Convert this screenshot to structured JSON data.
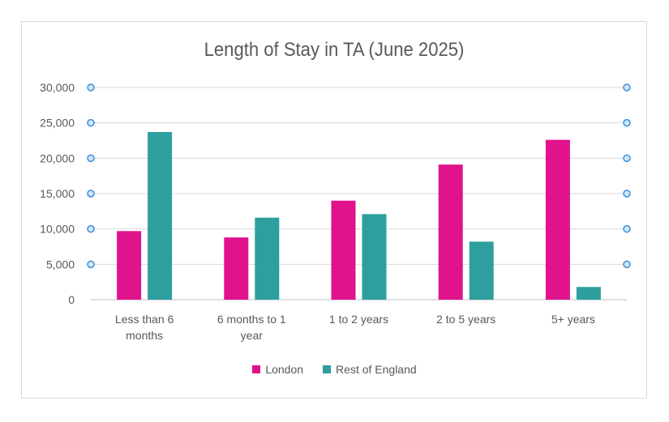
{
  "chart_data": {
    "type": "bar",
    "title": "Length of Stay in TA (June 2025)",
    "categories": [
      [
        "Less than 6",
        "months"
      ],
      [
        "6 months to 1",
        "year"
      ],
      [
        "1 to 2 years"
      ],
      [
        "2 to 5 years"
      ],
      [
        "5+ years"
      ]
    ],
    "series": [
      {
        "name": "London",
        "color": "#e0128c",
        "values": [
          9700,
          8800,
          14000,
          19100,
          22600
        ]
      },
      {
        "name": "Rest of England",
        "color": "#2e9e9e",
        "values": [
          23700,
          11600,
          12100,
          8200,
          1800
        ]
      }
    ],
    "yticks": [
      "0",
      "5,000",
      "10,000",
      "15,000",
      "20,000",
      "25,000",
      "30,000"
    ],
    "ylim": [
      0,
      30000
    ],
    "grid": true,
    "legend_position": "bottom"
  }
}
